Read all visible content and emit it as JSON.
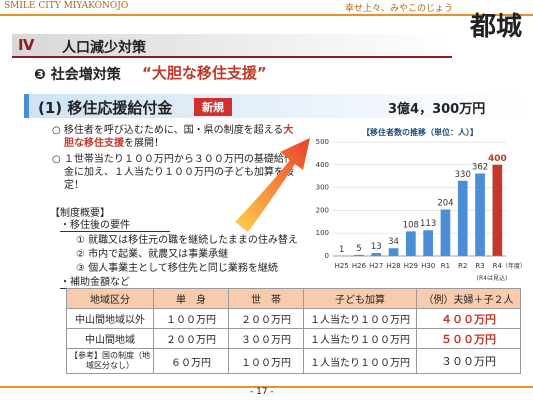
{
  "header": {
    "left": "SMILE CITY MIYAKONOJO",
    "right": "幸せ上々、みやこのじょう",
    "logo": "都城"
  },
  "section": {
    "number": "Ⅳ",
    "title": "人口減少対策"
  },
  "subsection": {
    "label": "❸ 社会増対策",
    "quote": "“大胆な移住支援”"
  },
  "heading": {
    "title": "(1) 移住応援給付金",
    "badge": "新規",
    "amount": "3億4，300万円"
  },
  "bullets": [
    {
      "before": "○ 移住者を呼び込むために、国・県の制度を超える",
      "highlight": "大胆な移住支援",
      "after": "を展開！"
    },
    {
      "text": "○ １世帯当たり１００万円から３００万円の基礎給付金に加え、１人当たり１００万円の子ども加算を設定！"
    }
  ],
  "outline": {
    "title": "【制度概要】",
    "requirements_title": "・移住後の要件",
    "requirements": [
      "① 就職又は移住元の職を継続したままの住み替え",
      "② 市内で起業、就農又は事業承継",
      "③ 個人事業主として移住先と同じ業務を継続"
    ],
    "amounts_title": "・補助金額など"
  },
  "table": {
    "header": [
      "地域区分",
      "単　身",
      "世　帯",
      "子ども加算",
      "（例）夫婦＋子２人"
    ],
    "rows": [
      [
        "中山間地域以外",
        "１００万円",
        "２００万円",
        "１人当たり１００万円",
        "４００万円"
      ],
      [
        "中山間地域",
        "２００万円",
        "３００万円",
        "１人当たり１００万円",
        "５００万円"
      ],
      [
        "【参考】国の制度（地域区分なし）",
        "６０万円",
        "１００万円",
        "１人当たり１００万円",
        "３００万円"
      ]
    ]
  },
  "chart": {
    "type": "bar",
    "title": "【移住者数の推移（単位：人）】",
    "categories": [
      "H25",
      "H26",
      "H27",
      "H28",
      "H29",
      "H30",
      "R1",
      "R2",
      "R3",
      "R4"
    ],
    "values": [
      1,
      5,
      13,
      34,
      108,
      113,
      204,
      330,
      362,
      400
    ],
    "colors": [
      "#4a8fd6",
      "#4a8fd6",
      "#4a8fd6",
      "#4a8fd6",
      "#4a8fd6",
      "#4a8fd6",
      "#4a8fd6",
      "#4a8fd6",
      "#4a8fd6",
      "#c0392b"
    ],
    "ylim": [
      0,
      500
    ],
    "yticks": [
      0,
      100,
      200,
      300,
      400,
      500
    ],
    "grid": true,
    "x_label": "（年度）",
    "note": "(R4は見込)"
  },
  "footer": {
    "page": "- 17 -"
  }
}
